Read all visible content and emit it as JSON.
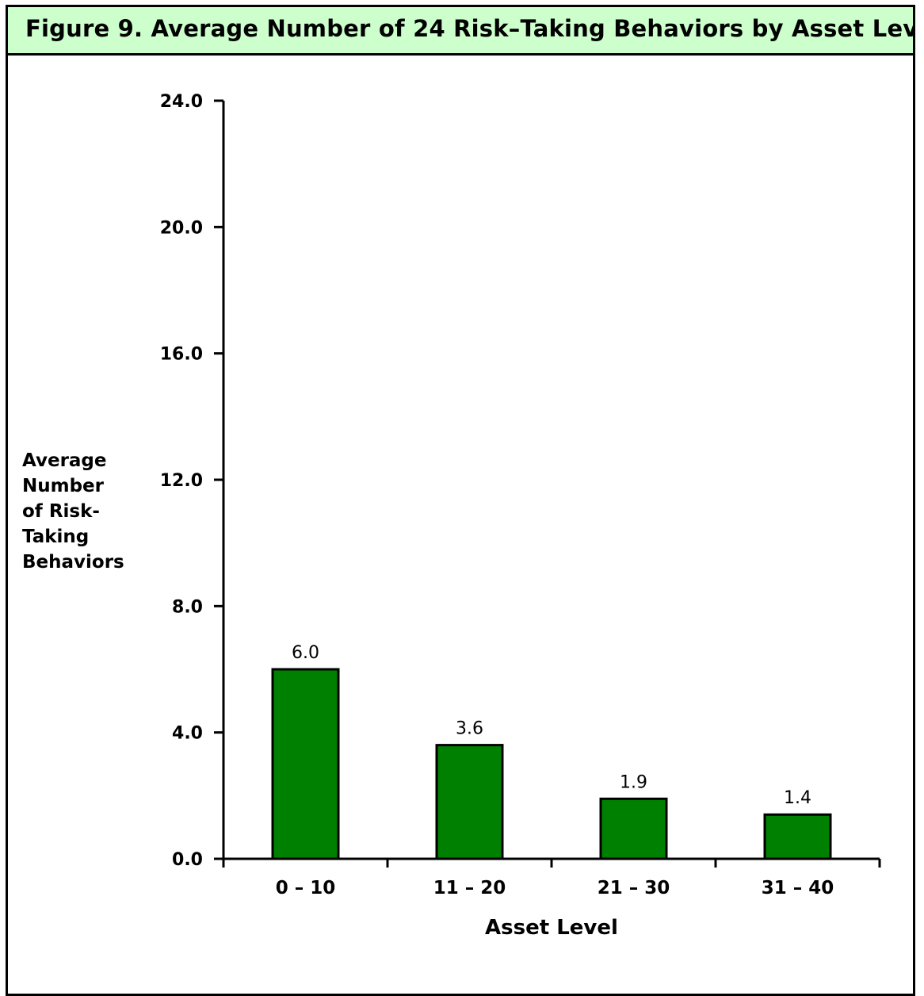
{
  "colors": {
    "title_background": "#ccffcc",
    "bar_fill": "#008000",
    "bar_stroke": "#000000",
    "text": "#000000"
  },
  "chart_data": {
    "type": "bar",
    "title": "Figure 9.  Average Number of 24 Risk–Taking Behaviors by Asset Lev",
    "xlabel": "Asset Level",
    "ylabel": "Average\nNumber\nof Risk-\nTaking\nBehaviors",
    "categories": [
      "0 – 10",
      "11 – 20",
      "21 – 30",
      "31 – 40"
    ],
    "values": [
      6.0,
      3.6,
      1.9,
      1.4
    ],
    "value_labels": [
      "6.0",
      "3.6",
      "1.9",
      "1.4"
    ],
    "yticks": [
      "0.0",
      "4.0",
      "8.0",
      "12.0",
      "16.0",
      "20.0",
      "24.0"
    ],
    "ylim": [
      0,
      24
    ],
    "grid": false,
    "legend": "none"
  }
}
